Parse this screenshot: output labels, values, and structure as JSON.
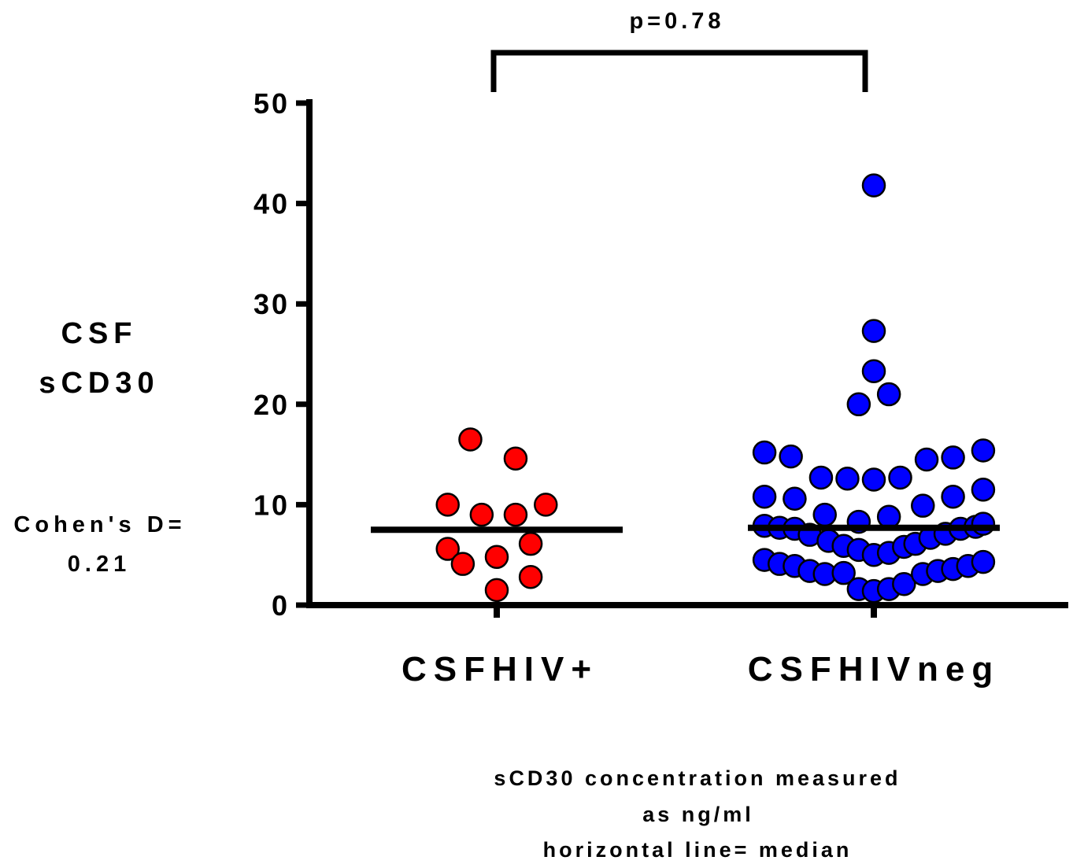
{
  "chart_data": {
    "type": "scatter",
    "subtype": "dot-plot-with-median",
    "ylabel_lines": [
      "CSF",
      "sCD30"
    ],
    "ylim": [
      0,
      50
    ],
    "yticks": [
      0,
      10,
      20,
      30,
      40,
      50
    ],
    "categories": [
      "CSFHIV+",
      "CSFHIVneg"
    ],
    "groups": [
      {
        "category": "CSFHIV+",
        "color": "#ff0000",
        "median": 7.5,
        "points": [
          {
            "x": -0.07,
            "y": 16.5
          },
          {
            "x": 0.05,
            "y": 14.6
          },
          {
            "x": -0.13,
            "y": 10.0
          },
          {
            "x": 0.13,
            "y": 10.0
          },
          {
            "x": -0.04,
            "y": 9.0
          },
          {
            "x": 0.05,
            "y": 9.0
          },
          {
            "x": 0.09,
            "y": 6.1
          },
          {
            "x": -0.13,
            "y": 5.6
          },
          {
            "x": -0.09,
            "y": 4.1
          },
          {
            "x": 0.0,
            "y": 4.8
          },
          {
            "x": 0.09,
            "y": 2.8
          },
          {
            "x": 0.0,
            "y": 1.5
          }
        ]
      },
      {
        "category": "CSFHIVneg",
        "color": "#0000ff",
        "median": 7.7,
        "points": [
          {
            "x": 0.0,
            "y": 41.8
          },
          {
            "x": 0.0,
            "y": 27.3
          },
          {
            "x": 0.0,
            "y": 23.3
          },
          {
            "x": 0.04,
            "y": 21.0
          },
          {
            "x": -0.04,
            "y": 20.0
          },
          {
            "x": -0.29,
            "y": 15.2
          },
          {
            "x": -0.22,
            "y": 14.8
          },
          {
            "x": 0.14,
            "y": 14.5
          },
          {
            "x": 0.21,
            "y": 14.7
          },
          {
            "x": 0.29,
            "y": 15.4
          },
          {
            "x": -0.14,
            "y": 12.7
          },
          {
            "x": -0.07,
            "y": 12.6
          },
          {
            "x": 0.0,
            "y": 12.5
          },
          {
            "x": 0.07,
            "y": 12.7
          },
          {
            "x": -0.29,
            "y": 10.8
          },
          {
            "x": -0.21,
            "y": 10.6
          },
          {
            "x": 0.13,
            "y": 9.9
          },
          {
            "x": 0.21,
            "y": 10.8
          },
          {
            "x": 0.29,
            "y": 11.5
          },
          {
            "x": -0.13,
            "y": 9.0
          },
          {
            "x": -0.04,
            "y": 8.3
          },
          {
            "x": 0.04,
            "y": 8.8
          },
          {
            "x": -0.29,
            "y": 7.9
          },
          {
            "x": -0.25,
            "y": 7.7
          },
          {
            "x": -0.21,
            "y": 7.6
          },
          {
            "x": -0.17,
            "y": 7.0
          },
          {
            "x": -0.12,
            "y": 6.4
          },
          {
            "x": -0.08,
            "y": 5.9
          },
          {
            "x": -0.04,
            "y": 5.5
          },
          {
            "x": 0.0,
            "y": 5.0
          },
          {
            "x": 0.04,
            "y": 5.2
          },
          {
            "x": 0.08,
            "y": 5.8
          },
          {
            "x": 0.11,
            "y": 6.1
          },
          {
            "x": 0.15,
            "y": 6.7
          },
          {
            "x": 0.19,
            "y": 7.1
          },
          {
            "x": 0.23,
            "y": 7.6
          },
          {
            "x": 0.27,
            "y": 7.8
          },
          {
            "x": 0.29,
            "y": 8.1
          },
          {
            "x": -0.29,
            "y": 4.5
          },
          {
            "x": -0.25,
            "y": 4.1
          },
          {
            "x": -0.21,
            "y": 3.9
          },
          {
            "x": -0.17,
            "y": 3.4
          },
          {
            "x": -0.13,
            "y": 3.1
          },
          {
            "x": -0.08,
            "y": 3.2
          },
          {
            "x": -0.04,
            "y": 1.6
          },
          {
            "x": 0.0,
            "y": 1.4
          },
          {
            "x": 0.04,
            "y": 1.6
          },
          {
            "x": 0.08,
            "y": 2.1
          },
          {
            "x": 0.13,
            "y": 3.1
          },
          {
            "x": 0.17,
            "y": 3.4
          },
          {
            "x": 0.21,
            "y": 3.6
          },
          {
            "x": 0.25,
            "y": 3.9
          },
          {
            "x": 0.29,
            "y": 4.3
          }
        ]
      }
    ],
    "significance": {
      "label": "p=0.78",
      "between": [
        "CSFHIV+",
        "CSFHIVneg"
      ]
    },
    "annotations": {
      "effect_size_lines": [
        "Cohen's D=",
        "0.21"
      ],
      "footnote_lines": [
        "sCD30 concentration measured",
        "as ng/ml",
        "horizontal line= median"
      ]
    }
  }
}
